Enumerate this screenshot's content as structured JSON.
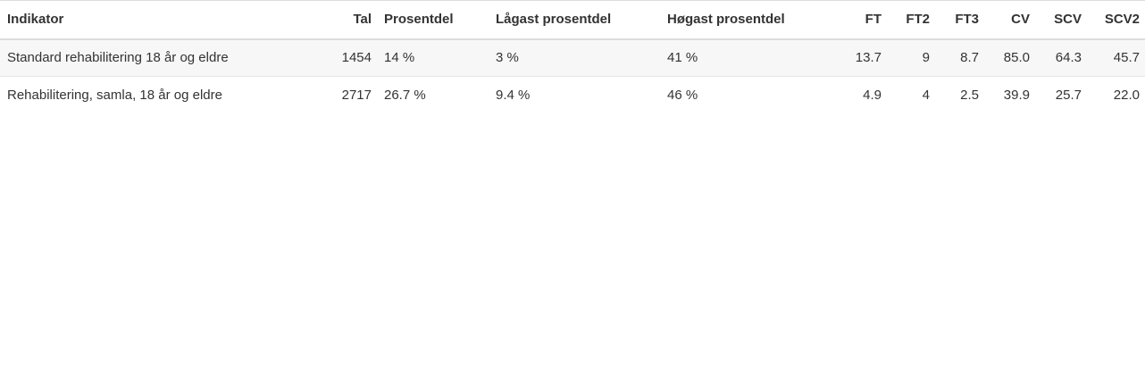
{
  "table": {
    "headers": {
      "indikator": "Indikator",
      "tal": "Tal",
      "prosentdel": "Prosentdel",
      "lagast": "Lågast prosentdel",
      "hogast": "Høgast prosentdel",
      "ft": "FT",
      "ft2": "FT2",
      "ft3": "FT3",
      "cv": "CV",
      "scv": "SCV",
      "scv2": "SCV2"
    },
    "rows": [
      {
        "indikator": "Standard rehabilitering 18 år og eldre",
        "tal": "1454",
        "prosentdel": "14 %",
        "lagast": "3 %",
        "hogast": "41 %",
        "ft": "13.7",
        "ft2": "9",
        "ft3": "8.7",
        "cv": "85.0",
        "scv": "64.3",
        "scv2": "45.7"
      },
      {
        "indikator": "Rehabilitering, samla, 18 år og eldre",
        "tal": "2717",
        "prosentdel": "26.7 %",
        "lagast": "9.4 %",
        "hogast": "46 %",
        "ft": "4.9",
        "ft2": "4",
        "ft3": "2.5",
        "cv": "39.9",
        "scv": "25.7",
        "scv2": "22.0"
      }
    ]
  }
}
